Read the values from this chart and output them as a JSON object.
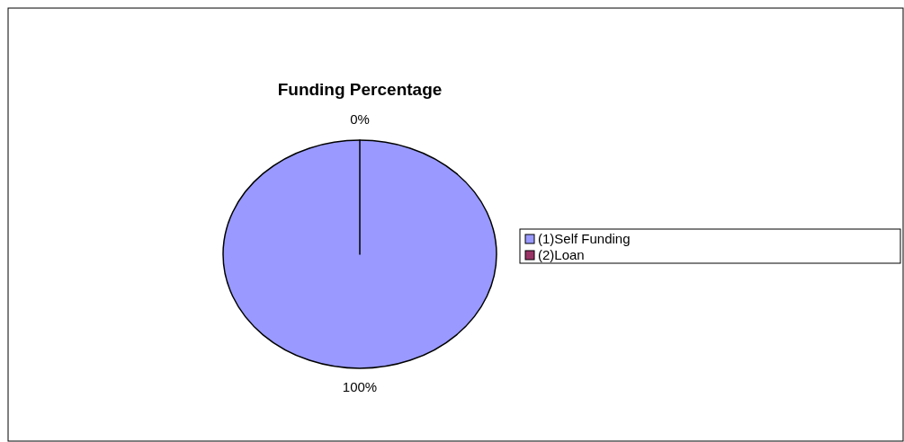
{
  "chart_data": {
    "type": "pie",
    "title": "Funding Percentage",
    "categories": [
      "(1)Self Funding",
      "(2)Loan"
    ],
    "values": [
      100,
      0
    ],
    "colors": [
      "#9999ff",
      "#993366"
    ],
    "value_labels": [
      "100%",
      "0%"
    ],
    "legend": "right"
  }
}
